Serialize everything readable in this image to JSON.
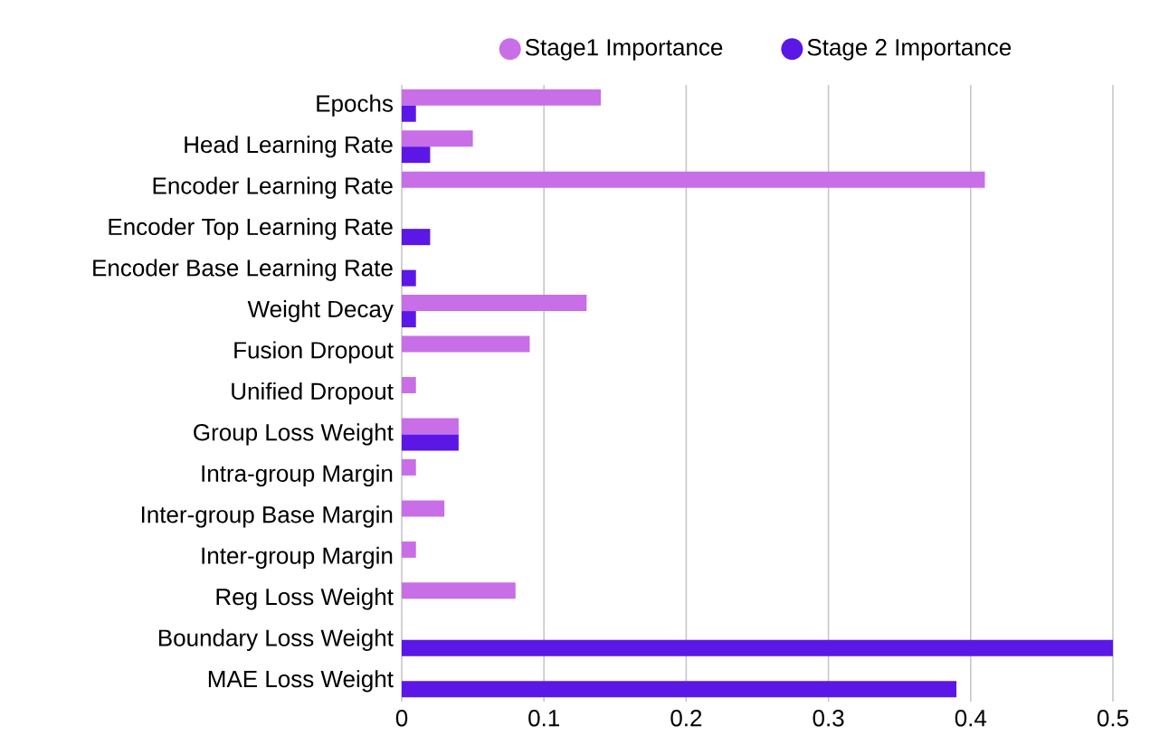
{
  "chart_data": {
    "type": "bar",
    "orientation": "horizontal",
    "categories": [
      "Epochs",
      "Head Learning Rate",
      "Encoder Learning Rate",
      "Encoder Top Learning Rate",
      "Encoder Base Learning Rate",
      "Weight Decay",
      "Fusion Dropout",
      "Unified Dropout",
      "Group Loss Weight",
      "Intra-group Margin",
      "Inter-group Base Margin",
      "Inter-group Margin",
      "Reg Loss Weight",
      "Boundary Loss Weight",
      "MAE Loss Weight"
    ],
    "series": [
      {
        "name": "Stage1 Importance",
        "color": "#c86ee6",
        "values": [
          0.14,
          0.05,
          0.41,
          null,
          null,
          0.13,
          0.09,
          0.01,
          0.04,
          0.01,
          0.03,
          0.01,
          0.08,
          null,
          null
        ]
      },
      {
        "name": "Stage 2 Importance",
        "color": "#5b17e6",
        "values": [
          0.01,
          0.02,
          null,
          0.02,
          0.01,
          0.01,
          null,
          null,
          0.04,
          null,
          null,
          null,
          null,
          0.5,
          0.39
        ]
      }
    ],
    "xlim": [
      0,
      0.5
    ],
    "xticks": [
      0,
      0.1,
      0.2,
      0.3,
      0.4,
      0.5
    ],
    "grid": "x",
    "legend": "top"
  }
}
